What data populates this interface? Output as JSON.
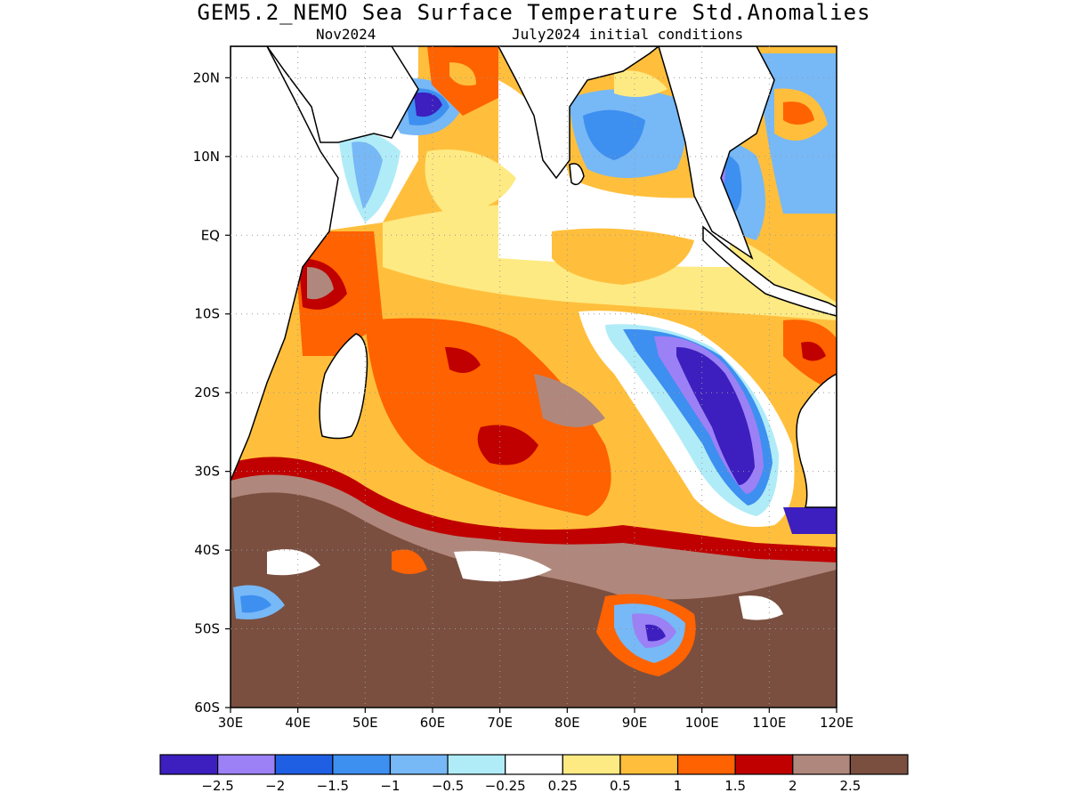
{
  "title": "GEM5.2_NEMO Sea Surface Temperature Std.Anomalies",
  "subtitle_left": "Nov2024",
  "subtitle_right": "July2024 initial conditions",
  "map": {
    "lon_range": [
      30,
      120
    ],
    "lat_range": [
      -60,
      24
    ],
    "x_ticks": [
      "30E",
      "40E",
      "50E",
      "60E",
      "70E",
      "80E",
      "90E",
      "100E",
      "110E",
      "120E"
    ],
    "y_ticks": [
      "20N",
      "10N",
      "EQ",
      "10S",
      "20S",
      "30S",
      "40S",
      "50S",
      "60S"
    ],
    "grid": "dotted"
  },
  "legend": {
    "colors": [
      "#3c1fbe",
      "#9c80f5",
      "#1f5fe3",
      "#3d8ff0",
      "#77b8f6",
      "#b0ecf8",
      "#ffffff",
      "#feea83",
      "#ffbf3c",
      "#ff6200",
      "#c00000",
      "#b0877c",
      "#7a4f40"
    ],
    "labels": [
      "−2.5",
      "−2",
      "−1.5",
      "−1",
      "−0.5",
      "−0.25",
      "0.25",
      "0.5",
      "1",
      "1.5",
      "2",
      "2.5"
    ]
  }
}
